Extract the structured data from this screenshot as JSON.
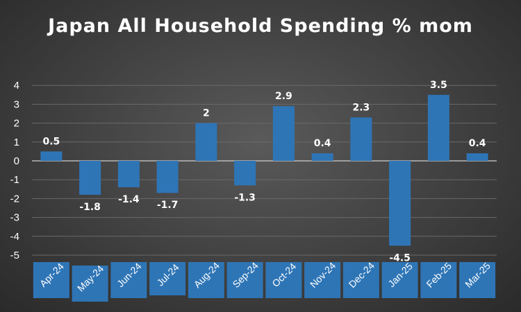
{
  "chart_data": {
    "type": "bar",
    "title": "Japan All Household Spending % mom",
    "categories": [
      "Apr-24",
      "May-24",
      "Jun-24",
      "Jul-24",
      "Aug-24",
      "Sep-24",
      "Oct-24",
      "Nov-24",
      "Dec-24",
      "Jan-25",
      "Feb-25",
      "Mar-25"
    ],
    "values": [
      0.5,
      -1.8,
      -1.4,
      -1.7,
      2,
      -1.3,
      2.9,
      0.4,
      2.3,
      -4.5,
      3.5,
      0.4
    ],
    "data_labels": [
      "0.5",
      "-1.8",
      "-1.4",
      "-1.7",
      "2",
      "-1.3",
      "2.9",
      "0.4",
      "2.3",
      "-4.5",
      "3.5",
      "0.4"
    ],
    "y_ticks": [
      "4",
      "3",
      "2",
      "1",
      "0",
      "-1",
      "-2",
      "-3",
      "-4",
      "-5"
    ],
    "ylim": [
      -5,
      4
    ],
    "grid": true,
    "legend": "none",
    "colors": {
      "bar": "#2e75b6",
      "label_box": "#2e75b6",
      "text": "#ffffff",
      "grid": "#6a6a6a",
      "axis": "#d0d0d0"
    }
  }
}
